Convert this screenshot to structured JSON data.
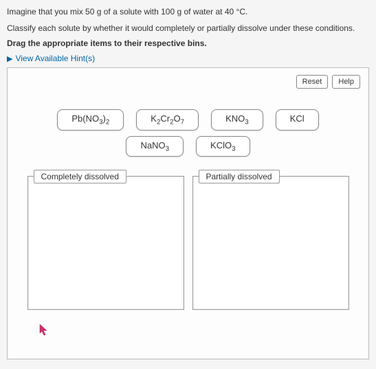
{
  "question": {
    "line1_pre": "Imagine that you mix 50 g of a solute with 100 g of water at 40 ",
    "degree": "°C",
    "line1_post": ".",
    "line2": "Classify each solute by whether it would completely or partially dissolve under these conditions.",
    "bold_instruction": "Drag the appropriate items to their respective bins."
  },
  "hints": {
    "arrow": "▶",
    "label": "View Available Hint(s)"
  },
  "buttons": {
    "reset": "Reset",
    "help": "Help"
  },
  "items": {
    "i0_html": "Pb(NO<sub>3</sub>)<sub>2</sub>",
    "i1_html": "K<sub>2</sub>Cr<sub>2</sub>O<sub>7</sub>",
    "i2_html": "KNO<sub>3</sub>",
    "i3_html": "KCl",
    "i4_html": "NaNO<sub>3</sub>",
    "i5_html": "KClO<sub>3</sub>"
  },
  "bins": {
    "left": "Completely dissolved",
    "right": "Partially dissolved"
  },
  "colors": {
    "link": "#0066a6",
    "border": "#888",
    "cursor": "#d03070"
  }
}
